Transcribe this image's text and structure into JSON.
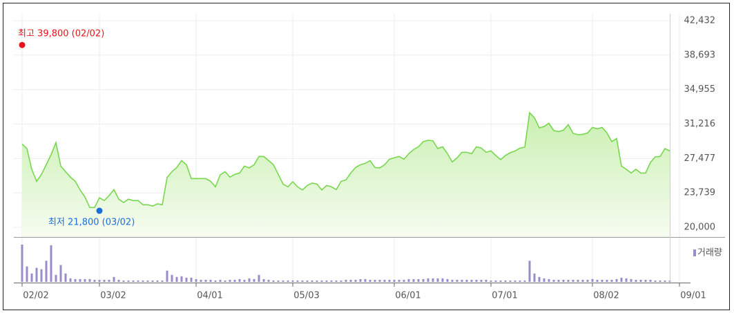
{
  "chart_data": {
    "type": "stock",
    "categories": [
      "02/02",
      null,
      null,
      null,
      null,
      null,
      null,
      null,
      null,
      null,
      null,
      null,
      null,
      null,
      null,
      null,
      "03/02",
      null,
      null,
      null,
      null,
      null,
      null,
      null,
      null,
      null,
      null,
      null,
      null,
      null,
      null,
      null,
      null,
      null,
      null,
      null,
      "04/01",
      null,
      null,
      null,
      null,
      null,
      null,
      null,
      null,
      null,
      null,
      null,
      null,
      null,
      null,
      null,
      null,
      null,
      null,
      null,
      "05/03",
      null,
      null,
      null,
      null,
      null,
      null,
      null,
      null,
      null,
      null,
      null,
      null,
      null,
      null,
      null,
      null,
      null,
      null,
      null,
      null,
      "06/01",
      null,
      null,
      null,
      null,
      null,
      null,
      null,
      null,
      null,
      null,
      null,
      null,
      null,
      null,
      null,
      null,
      null,
      null,
      null,
      "07/01",
      null,
      null,
      null,
      null,
      null,
      null,
      null,
      null,
      null,
      null,
      null,
      null,
      null,
      null,
      null,
      null,
      null,
      null,
      null,
      null,
      "08/02",
      null,
      null,
      null,
      null,
      null,
      null,
      null,
      null,
      null,
      null,
      null,
      null,
      null,
      null,
      null,
      null,
      null,
      "09/01"
    ],
    "series": [
      {
        "color": "#77d64e",
        "values": [
          29050,
          28550,
          26300,
          25000,
          25750,
          26800,
          27900,
          29200,
          26650,
          26050,
          25450,
          25000,
          24050,
          23300,
          22150,
          22150,
          23200,
          22900,
          23450,
          24100,
          23050,
          22700,
          23050,
          22900,
          22900,
          22450,
          22450,
          22300,
          22550,
          22450,
          25400,
          26050,
          26500,
          27250,
          26800,
          25300,
          25300,
          25300,
          25300,
          25000,
          24400,
          25700,
          26050,
          25450,
          25750,
          25900,
          26650,
          26450,
          26800,
          27700,
          27700,
          27250,
          26800,
          25750,
          24700,
          24400,
          24950,
          24400,
          24050,
          24550,
          24800,
          24700,
          24050,
          24550,
          24400,
          24100,
          25000,
          25150,
          25900,
          26500,
          26800,
          26950,
          27250,
          26500,
          26450,
          26800,
          27400,
          27550,
          27700,
          27400,
          28000,
          28450,
          28750,
          29300,
          29450,
          29400,
          28550,
          28750,
          28000,
          27100,
          27550,
          28150,
          28150,
          28000,
          28750,
          28600,
          28150,
          28300,
          27800,
          27350,
          27800,
          28100,
          28300,
          28600,
          28700,
          32450,
          31900,
          30800,
          30950,
          31300,
          30500,
          30400,
          30550,
          31150,
          30200,
          30050,
          30100,
          30250,
          30850,
          30700,
          30850,
          30250,
          29300,
          29650,
          26650,
          26300,
          25900,
          26300,
          25900,
          25900,
          27050,
          27650,
          27700,
          28550,
          28300,
          null,
          null
        ]
      },
      {
        "name": "거래량",
        "color": "#9a8cc8",
        "values": [
          53,
          22,
          12,
          20,
          18,
          30,
          52,
          10,
          24,
          12,
          5,
          4,
          4,
          4,
          4,
          3,
          3,
          3,
          3,
          7,
          3,
          2,
          2,
          2,
          2,
          2,
          2,
          2,
          2,
          2,
          16,
          10,
          7,
          8,
          6,
          6,
          4,
          3,
          3,
          3,
          2,
          3,
          2,
          3,
          3,
          4,
          3,
          5,
          4,
          10,
          4,
          3,
          2,
          2,
          2,
          2,
          2,
          2,
          2,
          2,
          2,
          2,
          2,
          2,
          2,
          2,
          2,
          3,
          3,
          3,
          4,
          4,
          3,
          3,
          3,
          3,
          3,
          3,
          3,
          3,
          4,
          4,
          4,
          4,
          5,
          5,
          5,
          5,
          4,
          3,
          3,
          3,
          3,
          3,
          3,
          3,
          3,
          2,
          2,
          2,
          2,
          2,
          2,
          2,
          2,
          30,
          12,
          7,
          5,
          4,
          3,
          3,
          3,
          3,
          3,
          3,
          3,
          3,
          4,
          3,
          3,
          3,
          3,
          4,
          6,
          5,
          4,
          3,
          3,
          3,
          3,
          2,
          2,
          2,
          2,
          null,
          null
        ]
      }
    ],
    "ylim": [
      20000,
      42432
    ],
    "yticks": [
      {
        "value": 20000,
        "label": "20,000"
      },
      {
        "value": 23739,
        "label": "23,739"
      },
      {
        "value": 27477,
        "label": "27,477"
      },
      {
        "value": 31216,
        "label": "31,216"
      },
      {
        "value": 34955,
        "label": "34,955"
      },
      {
        "value": 38693,
        "label": "38,693"
      },
      {
        "value": 42432,
        "label": "42,432"
      }
    ],
    "grid": true,
    "annotations": [
      {
        "text": "최고 39,800 (02/02)",
        "value": 39800,
        "date": "02/02",
        "color": "#e8141b"
      },
      {
        "text": "최저 21,800 (03/02)",
        "value": 21800,
        "date": "03/02",
        "color": "#1a6fd6"
      }
    ]
  }
}
